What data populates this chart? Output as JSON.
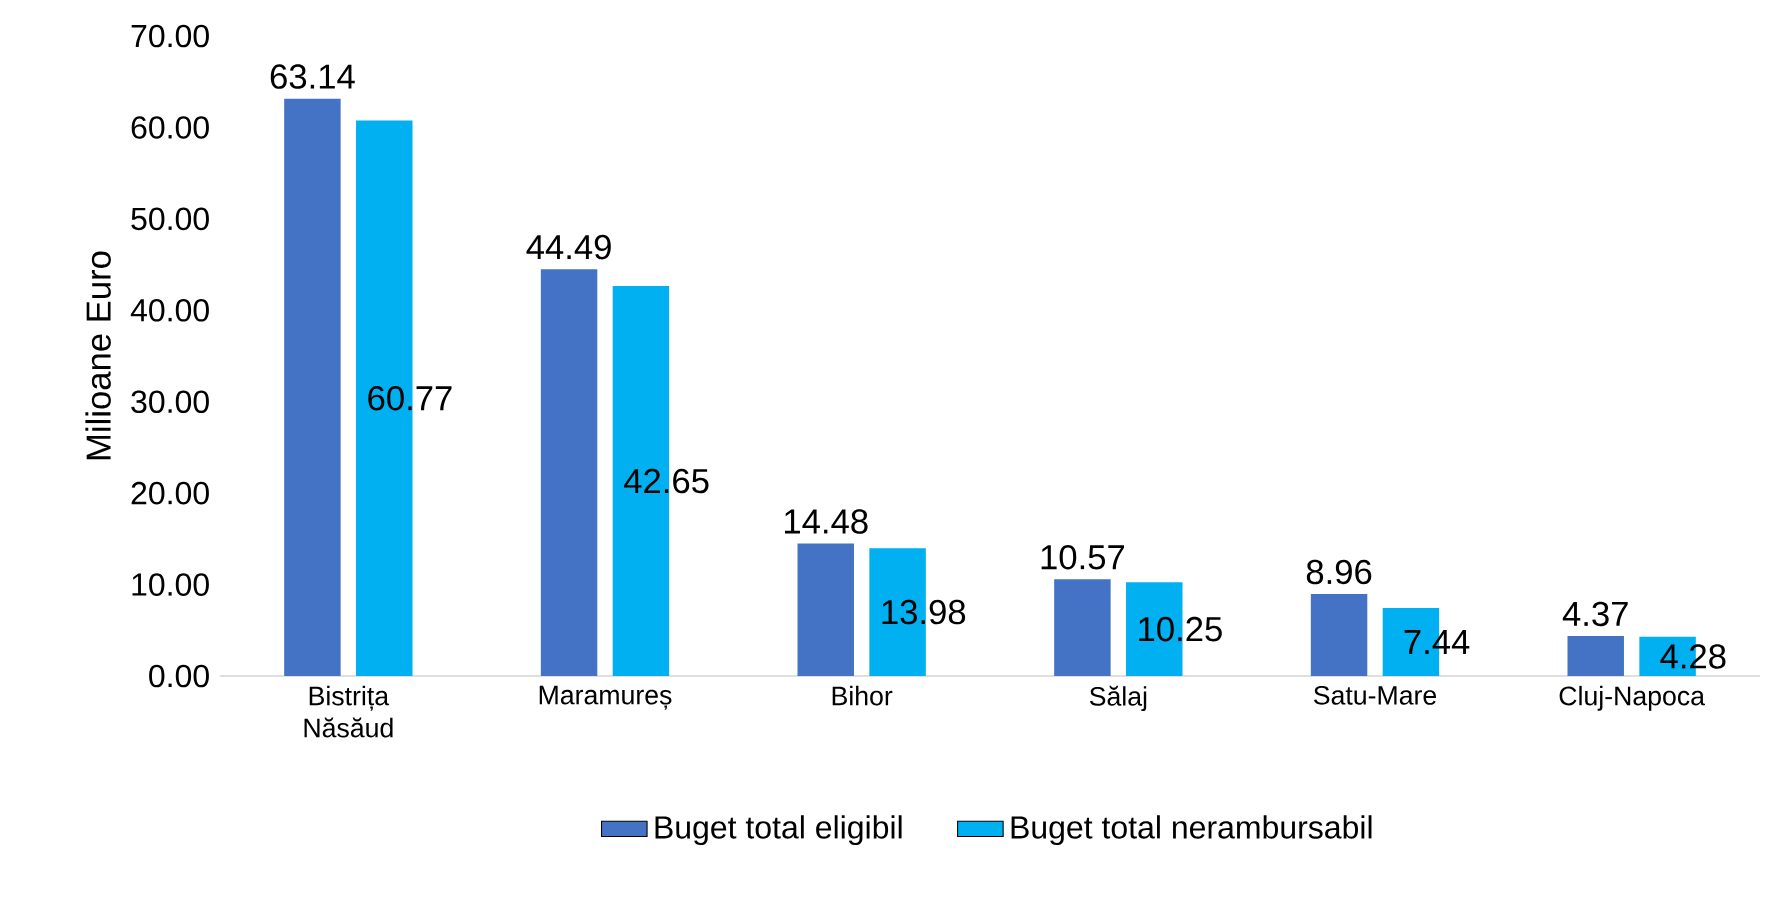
{
  "chart_data": {
    "type": "bar",
    "ylabel": "Milioane Euro",
    "categories": [
      "Bistrița Năsăud",
      "Maramureș",
      "Bihor",
      "Sălaj",
      "Satu-Mare",
      "Cluj-Napoca"
    ],
    "series": [
      {
        "name": "Buget total eligibil",
        "color": "#4472c4",
        "values": [
          63.14,
          44.49,
          14.48,
          10.57,
          8.96,
          4.37
        ]
      },
      {
        "name": "Buget total nerambursabil",
        "color": "#00b0f0",
        "values": [
          60.77,
          42.65,
          13.98,
          10.25,
          7.44,
          4.28
        ]
      }
    ],
    "ylim": [
      0,
      70
    ],
    "yticks": [
      {
        "value": 0,
        "label": "0.00"
      },
      {
        "value": 10,
        "label": "10.00"
      },
      {
        "value": 20,
        "label": "20.00"
      },
      {
        "value": 30,
        "label": "30.00"
      },
      {
        "value": 40,
        "label": "40.00"
      },
      {
        "value": 50,
        "label": "50.00"
      },
      {
        "value": 60,
        "label": "60.00"
      },
      {
        "value": 70,
        "label": "70.00"
      }
    ],
    "data_labels": true,
    "legend": "bottom",
    "grid": false
  }
}
